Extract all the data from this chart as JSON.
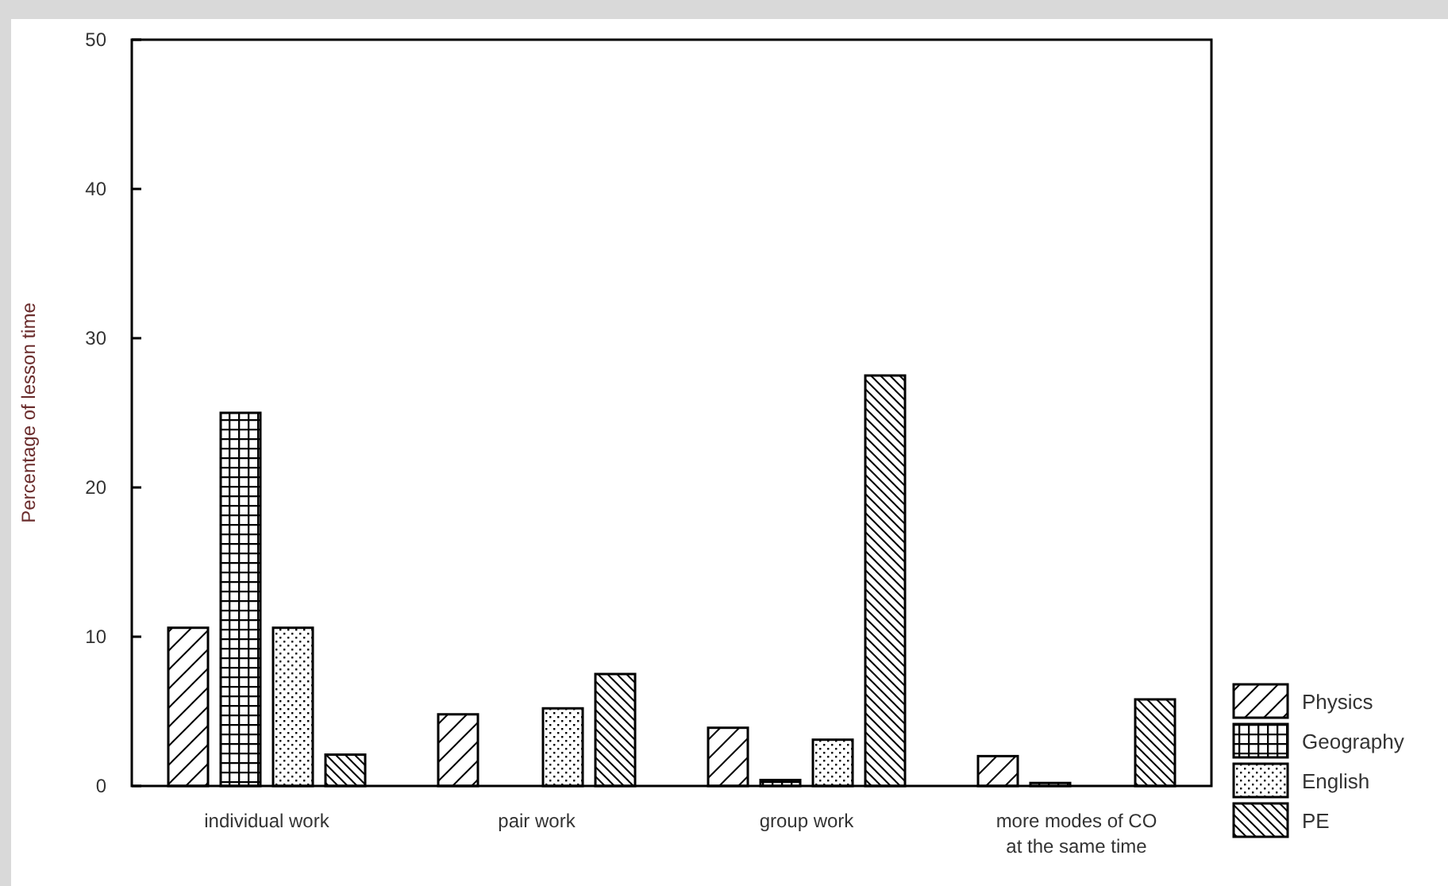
{
  "chart_data": {
    "type": "bar",
    "ylabel": "Percentage of lesson time",
    "categories": [
      "individual work",
      "pair work",
      "group work",
      "more modes of CO\nat the same time"
    ],
    "series": [
      {
        "name": "Physics",
        "color": "#000000",
        "values": [
          10.6,
          4.8,
          3.9,
          2.0
        ]
      },
      {
        "name": "Geography",
        "color": "#000000",
        "values": [
          25.0,
          null,
          0.4,
          0.2
        ]
      },
      {
        "name": "English",
        "color": "#000000",
        "values": [
          10.6,
          5.2,
          3.1,
          null
        ]
      },
      {
        "name": "PE",
        "color": "#000000",
        "values": [
          2.1,
          7.5,
          27.5,
          5.8
        ]
      }
    ],
    "ylim": [
      0,
      50
    ],
    "yticks": [
      0,
      10,
      20,
      30,
      40,
      50
    ],
    "grid": false,
    "legend": "bottom right"
  }
}
